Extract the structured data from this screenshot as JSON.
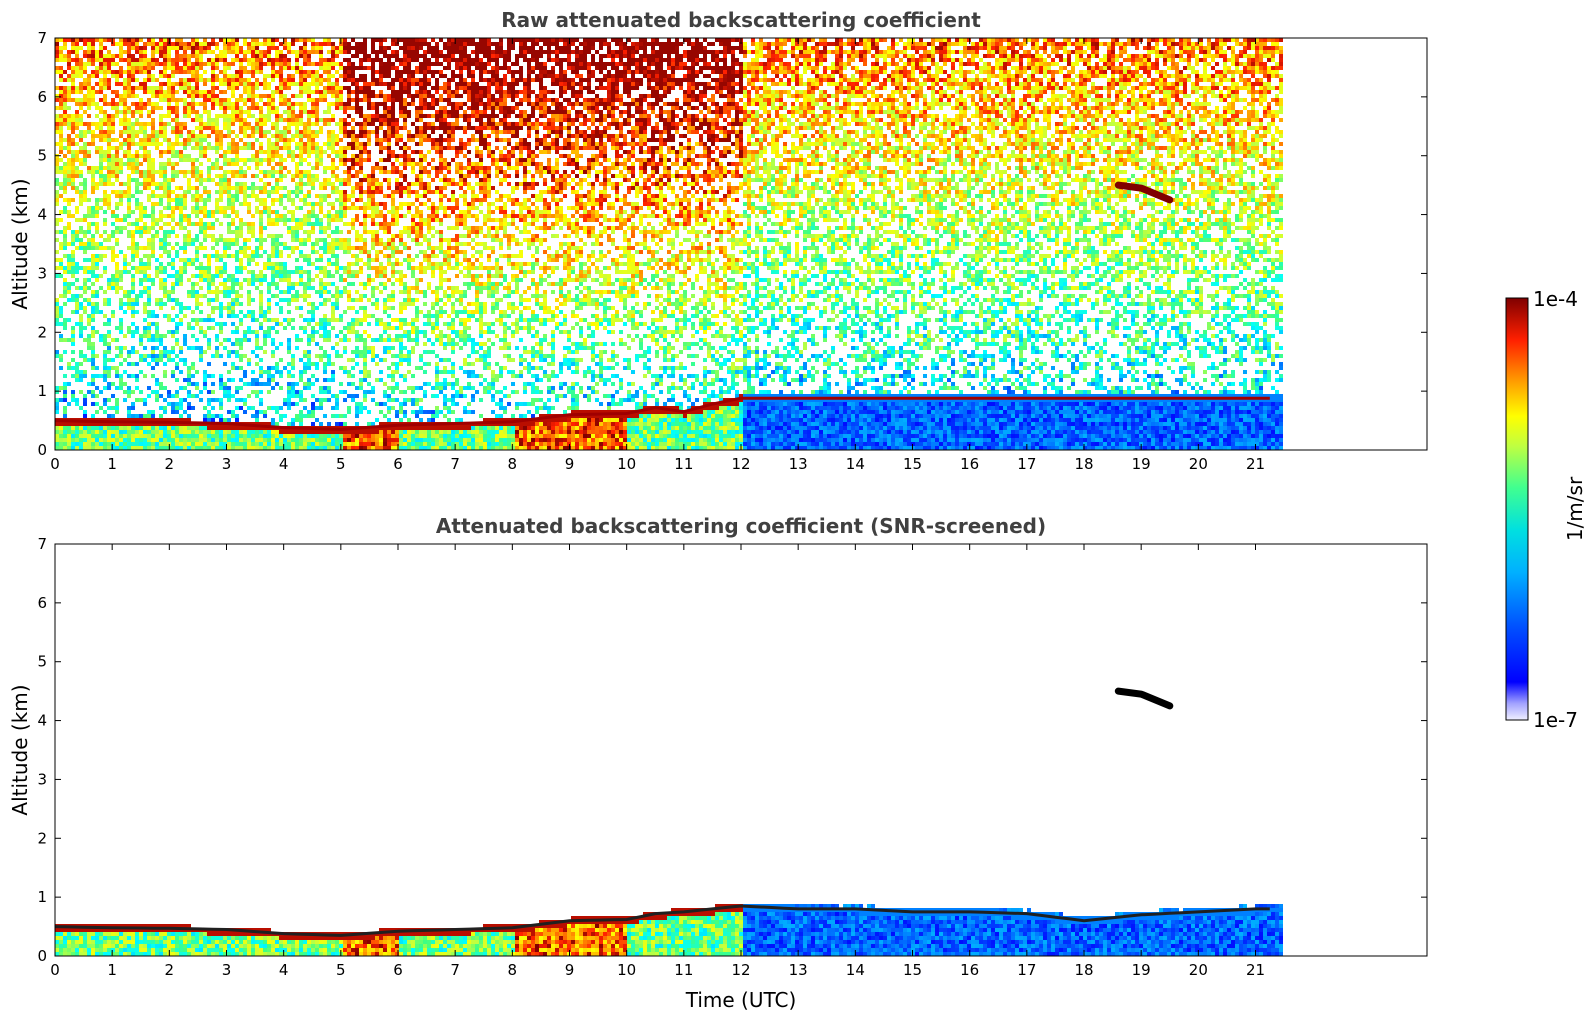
{
  "chart_data": [
    {
      "type": "heatmap",
      "title": "Raw attenuated backscattering coefficient",
      "ylabel": "Altitude (km)",
      "xlabel": "",
      "xlim": [
        0,
        24
      ],
      "ylim": [
        0,
        7
      ],
      "xticks": [
        0,
        1,
        2,
        3,
        4,
        5,
        6,
        7,
        8,
        9,
        10,
        11,
        12,
        13,
        14,
        15,
        16,
        17,
        18,
        19,
        20,
        21
      ],
      "yticks": [
        0,
        1,
        2,
        3,
        4,
        5,
        6,
        7
      ],
      "data_end_time": 21.45,
      "features": [
        {
          "kind": "boundary_layer_top",
          "points": [
            [
              0,
              0.5
            ],
            [
              1,
              0.48
            ],
            [
              2,
              0.47
            ],
            [
              3,
              0.45
            ],
            [
              4,
              0.38
            ],
            [
              5,
              0.35
            ],
            [
              6,
              0.42
            ],
            [
              7,
              0.45
            ],
            [
              8,
              0.48
            ],
            [
              9,
              0.6
            ],
            [
              10,
              0.62
            ],
            [
              10.5,
              0.72
            ],
            [
              11,
              0.65
            ],
            [
              11.5,
              0.78
            ],
            [
              12,
              0.88
            ]
          ]
        },
        {
          "kind": "elevated_aerosol_layer",
          "points": [
            [
              18.6,
              4.5
            ],
            [
              19.0,
              4.45
            ],
            [
              19.5,
              4.25
            ]
          ]
        },
        {
          "kind": "high_noise_background",
          "x_range": [
            5,
            12
          ],
          "y_range": [
            4,
            7
          ]
        }
      ],
      "grid": false
    },
    {
      "type": "heatmap",
      "title": "Attenuated backscattering coefficient (SNR-screened)",
      "ylabel": "Altitude (km)",
      "xlabel": "Time (UTC)",
      "xlim": [
        0,
        24
      ],
      "ylim": [
        0,
        7
      ],
      "xticks": [
        0,
        1,
        2,
        3,
        4,
        5,
        6,
        7,
        8,
        9,
        10,
        11,
        12,
        13,
        14,
        15,
        16,
        17,
        18,
        19,
        20,
        21
      ],
      "yticks": [
        0,
        1,
        2,
        3,
        4,
        5,
        6,
        7
      ],
      "data_end_time": 21.45,
      "features": [
        {
          "kind": "boundary_layer_top",
          "points": [
            [
              0,
              0.5
            ],
            [
              1,
              0.48
            ],
            [
              2,
              0.47
            ],
            [
              3,
              0.45
            ],
            [
              4,
              0.38
            ],
            [
              5,
              0.35
            ],
            [
              6,
              0.42
            ],
            [
              7,
              0.45
            ],
            [
              8,
              0.48
            ],
            [
              9,
              0.6
            ],
            [
              10,
              0.62
            ],
            [
              10.5,
              0.72
            ],
            [
              11,
              0.75
            ],
            [
              12,
              0.85
            ],
            [
              13,
              0.8
            ],
            [
              14,
              0.8
            ],
            [
              15,
              0.75
            ],
            [
              16,
              0.75
            ],
            [
              17,
              0.72
            ],
            [
              18,
              0.6
            ],
            [
              19,
              0.7
            ],
            [
              20,
              0.75
            ],
            [
              21,
              0.8
            ]
          ]
        },
        {
          "kind": "elevated_aerosol_layer",
          "points": [
            [
              18.6,
              4.5
            ],
            [
              19.0,
              4.45
            ],
            [
              19.5,
              4.25
            ]
          ]
        }
      ],
      "grid": false
    }
  ],
  "colorbar": {
    "max_label": "1e-4",
    "min_label": "1e-7",
    "unit_label": "1/m/sr",
    "colormap": "jet",
    "colors": [
      "#ffffff",
      "#0000ff",
      "#00a0ff",
      "#00ffff",
      "#40ff80",
      "#c0ff40",
      "#ffff00",
      "#ff9000",
      "#ff2000",
      "#800000"
    ]
  }
}
